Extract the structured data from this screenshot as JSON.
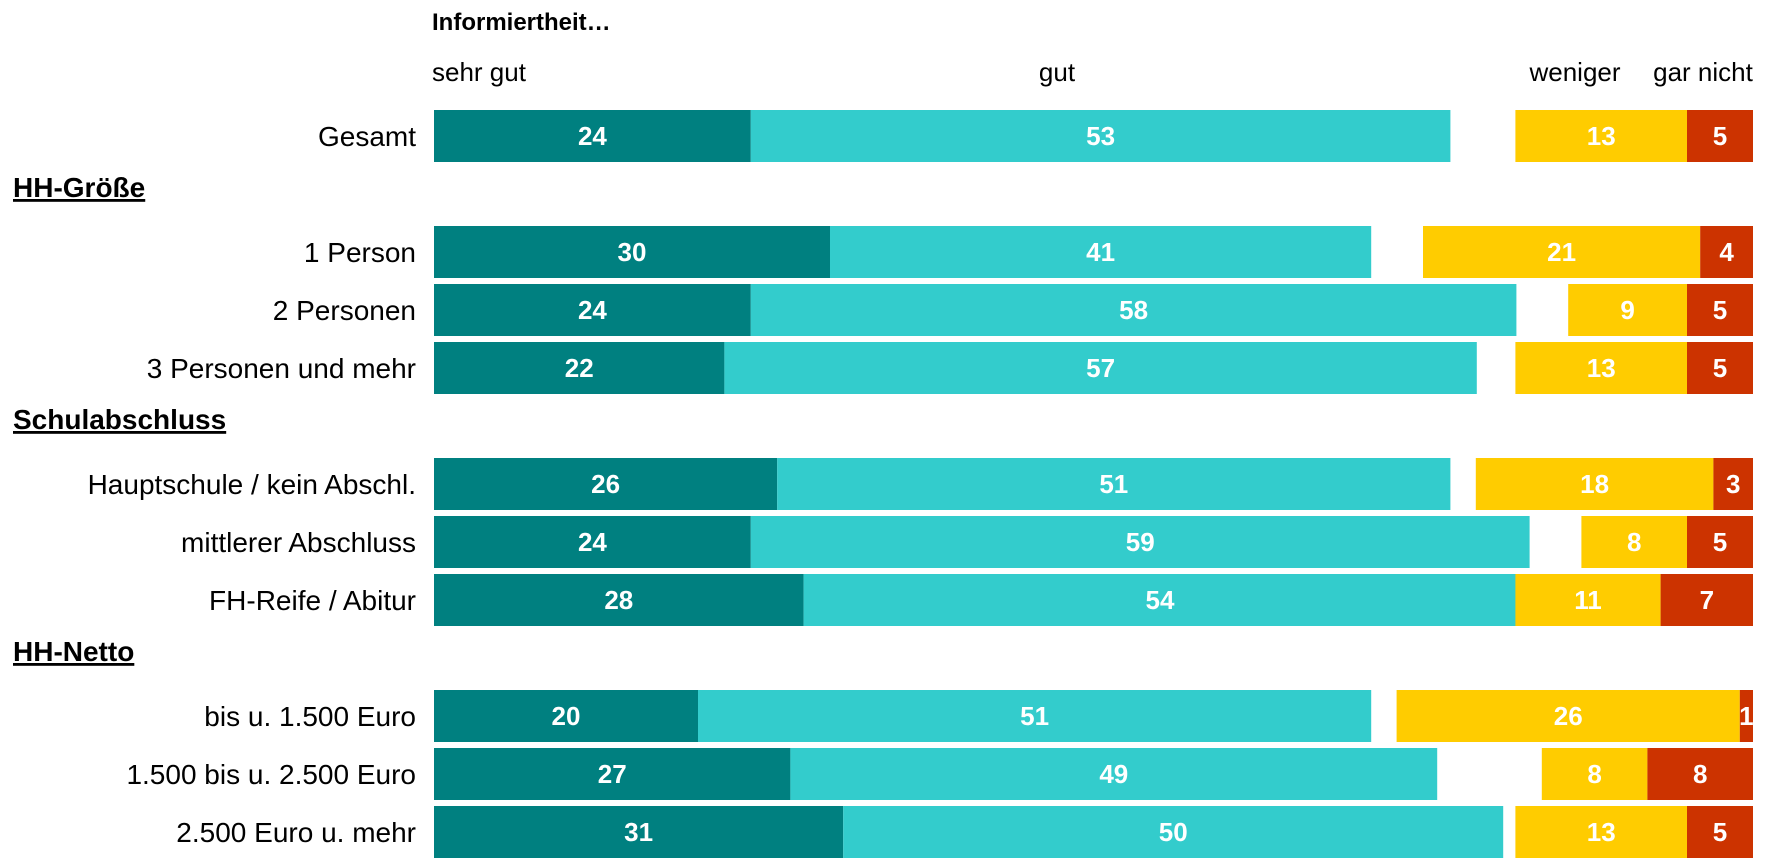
{
  "chart_data": {
    "type": "bar",
    "orientation": "horizontal",
    "stacked": true,
    "title": "Informiertheit…",
    "column_headers": [
      "sehr gut",
      "gut",
      "weniger",
      "gar nicht"
    ],
    "series": [
      {
        "name": "sehr gut",
        "color": "#008080"
      },
      {
        "name": "gut",
        "color": "#33CCCC"
      },
      {
        "name": "weniger",
        "color": "#FFCC00"
      },
      {
        "name": "gar nicht",
        "color": "#CC3300"
      }
    ],
    "rows": [
      {
        "label": "Gesamt",
        "values": [
          24,
          53,
          13,
          5
        ]
      },
      {
        "group": "HH-Größe"
      },
      {
        "label": "1 Person",
        "values": [
          30,
          41,
          21,
          4
        ]
      },
      {
        "label": "2 Personen",
        "values": [
          24,
          58,
          9,
          5
        ]
      },
      {
        "label": "3 Personen und mehr",
        "values": [
          22,
          57,
          13,
          5
        ]
      },
      {
        "group": "Schulabschluss"
      },
      {
        "label": "Hauptschule / kein Abschl.",
        "values": [
          26,
          51,
          18,
          3
        ]
      },
      {
        "label": "mittlerer Abschluss",
        "values": [
          24,
          59,
          8,
          5
        ]
      },
      {
        "label": "FH-Reife / Abitur",
        "values": [
          28,
          54,
          11,
          7
        ]
      },
      {
        "group": "HH-Netto"
      },
      {
        "label": "bis u. 1.500 Euro",
        "values": [
          20,
          51,
          26,
          1
        ]
      },
      {
        "label": "1.500 bis u. 2.500 Euro",
        "values": [
          27,
          49,
          8,
          8
        ]
      },
      {
        "label": "2.500 Euro u. mehr",
        "values": [
          31,
          50,
          13,
          5
        ]
      }
    ],
    "grid": false,
    "legend": "none"
  }
}
